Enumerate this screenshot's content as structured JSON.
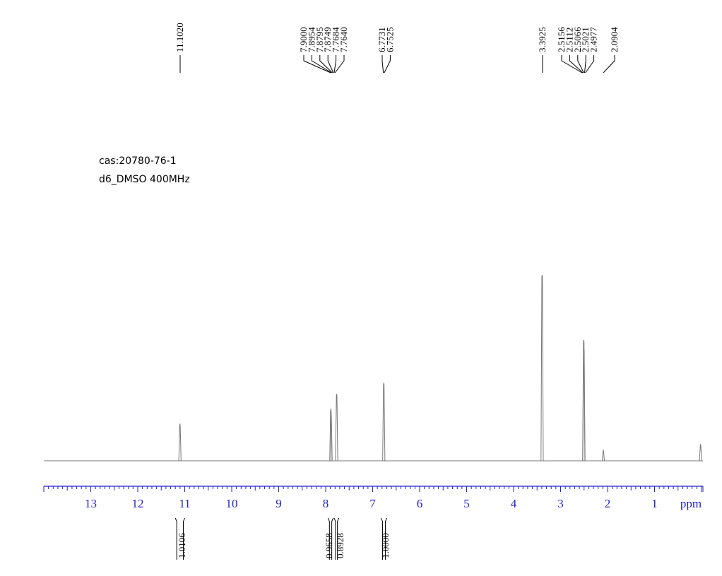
{
  "sample": {
    "cas": "cas:20780-76-1",
    "solvent": "d6_DMSO 400MHz"
  },
  "chart_data": {
    "type": "line",
    "title": "",
    "xlabel": "ppm",
    "ylabel": "",
    "xlim": [
      14,
      0
    ],
    "x_reversed": true,
    "x_ticks": [
      "13",
      "12",
      "11",
      "10",
      "9",
      "8",
      "7",
      "6",
      "5",
      "4",
      "3",
      "2",
      "1"
    ],
    "grid": false,
    "legend": "none",
    "colors": {
      "spectrum": "#777777",
      "axis": "#2222cc",
      "labels": "#000000"
    },
    "peak_groups": [
      {
        "labels": [
          "11.1020"
        ],
        "values": [
          11.102
        ]
      },
      {
        "labels": [
          "7.9000",
          "7.8954",
          "7.8795",
          "7.8749",
          "7.7684",
          "7.7640"
        ],
        "values": [
          7.9,
          7.8954,
          7.8795,
          7.8749,
          7.7684,
          7.764
        ]
      },
      {
        "labels": [
          "6.7731",
          "6.7525"
        ],
        "values": [
          6.7731,
          6.7525
        ]
      },
      {
        "labels": [
          "3.3925"
        ],
        "values": [
          3.3925
        ]
      },
      {
        "labels": [
          "2.5156",
          "2.5112",
          "2.5066",
          "2.5021",
          "2.4977"
        ],
        "values": [
          2.5156,
          2.5112,
          2.5066,
          2.5021,
          2.4977
        ]
      },
      {
        "labels": [
          "2.0904"
        ],
        "values": [
          2.0904
        ]
      }
    ],
    "spectrum_peaks": [
      {
        "ppm": 11.102,
        "intensity": 0.2
      },
      {
        "ppm": 7.89,
        "intensity": 0.28
      },
      {
        "ppm": 7.885,
        "intensity": 0.25
      },
      {
        "ppm": 7.766,
        "intensity": 0.36
      },
      {
        "ppm": 6.763,
        "intensity": 0.42
      },
      {
        "ppm": 3.3925,
        "intensity": 1.0
      },
      {
        "ppm": 2.5066,
        "intensity": 0.65
      },
      {
        "ppm": 2.503,
        "intensity": 0.6
      },
      {
        "ppm": 2.0904,
        "intensity": 0.06
      },
      {
        "ppm": 0.02,
        "intensity": 0.09
      }
    ],
    "integrals": [
      {
        "label": "1.0106",
        "from": 11.2,
        "to": 11.0
      },
      {
        "label": "0.9658",
        "from": 7.95,
        "to": 7.84
      },
      {
        "label": "0.8928",
        "from": 7.82,
        "to": 7.72
      },
      {
        "label": "1.0000",
        "from": 6.82,
        "to": 6.7
      }
    ]
  }
}
